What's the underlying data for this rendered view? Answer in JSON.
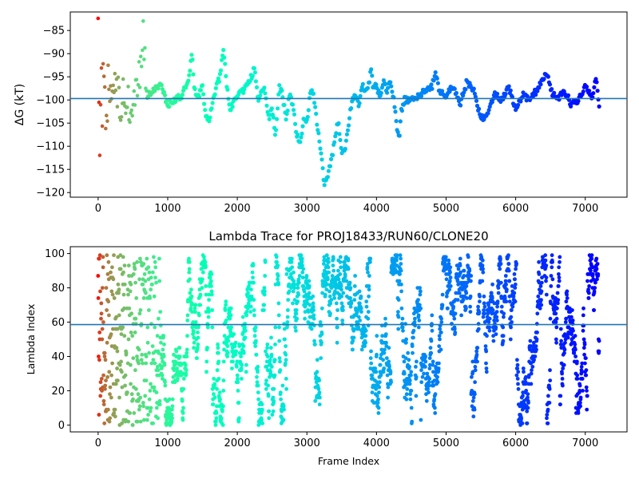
{
  "chart_data": [
    {
      "type": "scatter",
      "title": "",
      "xlabel": "",
      "ylabel": "ΔG (kT)",
      "xlim": [
        -400,
        7600
      ],
      "ylim": [
        -121,
        -81
      ],
      "xticks": [
        0,
        1000,
        2000,
        3000,
        4000,
        5000,
        6000,
        7000
      ],
      "xtick_labels": [
        "0",
        "1000",
        "2000",
        "3000",
        "4000",
        "5000",
        "6000",
        "7000"
      ],
      "yticks": [
        -85,
        -90,
        -95,
        -100,
        -105,
        -110,
        -115,
        -120
      ],
      "ytick_labels": [
        "−85",
        "−90",
        "−95",
        "−100",
        "−105",
        "−110",
        "−115",
        "−120"
      ],
      "hline": -99.7,
      "hline_color": "#1f77b4",
      "colormap": "rainbow",
      "color_mapping": "frame index (red at early frames, violet at late frames)",
      "grid": false,
      "x": [
        0,
        20,
        40,
        60,
        80,
        100,
        150,
        200,
        250,
        300,
        400,
        500,
        600,
        650,
        700,
        800,
        900,
        1000,
        1100,
        1200,
        1300,
        1350,
        1380,
        1450,
        1500,
        1550,
        1600,
        1700,
        1750,
        1800,
        1850,
        1900,
        2000,
        2100,
        2200,
        2250,
        2300,
        2350,
        2400,
        2450,
        2500,
        2550,
        2600,
        2650,
        2700,
        2750,
        2800,
        2850,
        2900,
        2950,
        3000,
        3050,
        3100,
        3150,
        3200,
        3250,
        3300,
        3350,
        3400,
        3450,
        3500,
        3550,
        3600,
        3650,
        3700,
        3750,
        3800,
        3850,
        3900,
        3920,
        3950,
        4000,
        4050,
        4100,
        4150,
        4200,
        4250,
        4300,
        4330,
        4350,
        4400,
        4500,
        4600,
        4700,
        4800,
        4850,
        4900,
        5000,
        5100,
        5200,
        5300,
        5400,
        5500,
        5600,
        5700,
        5800,
        5900,
        6000,
        6100,
        6200,
        6300,
        6400,
        6450,
        6500,
        6600,
        6700,
        6800,
        6900,
        7000,
        7100,
        7150,
        7200
      ],
      "values": [
        -90,
        -110,
        -86,
        -100,
        -94,
        -104,
        -97,
        -100,
        -93,
        -102,
        -99,
        -104,
        -95,
        -87,
        -99,
        -98,
        -97,
        -101,
        -100,
        -99,
        -96,
        -89,
        -98,
        -99,
        -97,
        -104,
        -104,
        -97,
        -95,
        -89,
        -97,
        -102,
        -99,
        -98,
        -95,
        -93,
        -100,
        -98,
        -98,
        -104,
        -102,
        -108,
        -97,
        -99,
        -104,
        -99,
        -101,
        -107,
        -110,
        -104,
        -105,
        -98,
        -99,
        -106,
        -111,
        -118,
        -116,
        -113,
        -109,
        -104,
        -112,
        -111,
        -105,
        -100,
        -99,
        -101,
        -97,
        -98,
        -96,
        -93,
        -97,
        -97,
        -99,
        -96,
        -98,
        -96,
        -100,
        -107,
        -108,
        -103,
        -100,
        -100,
        -99,
        -98,
        -97,
        -94,
        -98,
        -99,
        -97,
        -101,
        -96,
        -98,
        -104,
        -103,
        -99,
        -100,
        -97,
        -102,
        -99,
        -100,
        -98,
        -95,
        -94,
        -98,
        -100,
        -98,
        -101,
        -100,
        -97,
        -100,
        -95,
        -101
      ]
    },
    {
      "type": "scatter",
      "title": "Lambda Trace for PROJ18433/RUN60/CLONE20",
      "xlabel": "Frame Index",
      "ylabel": "Lambda Index",
      "xlim": [
        -400,
        7600
      ],
      "ylim": [
        -4,
        104
      ],
      "xticks": [
        0,
        1000,
        2000,
        3000,
        4000,
        5000,
        6000,
        7000
      ],
      "xtick_labels": [
        "0",
        "1000",
        "2000",
        "3000",
        "4000",
        "5000",
        "6000",
        "7000"
      ],
      "yticks": [
        0,
        20,
        40,
        60,
        80,
        100
      ],
      "ytick_labels": [
        "0",
        "20",
        "40",
        "60",
        "80",
        "100"
      ],
      "hline": 58.6,
      "hline_color": "#1f77b4",
      "colormap": "rainbow",
      "color_mapping": "frame index (red at early frames, violet at late frames)",
      "grid": false,
      "num_frames": 7200,
      "lambda_range": [
        0,
        99
      ]
    }
  ]
}
